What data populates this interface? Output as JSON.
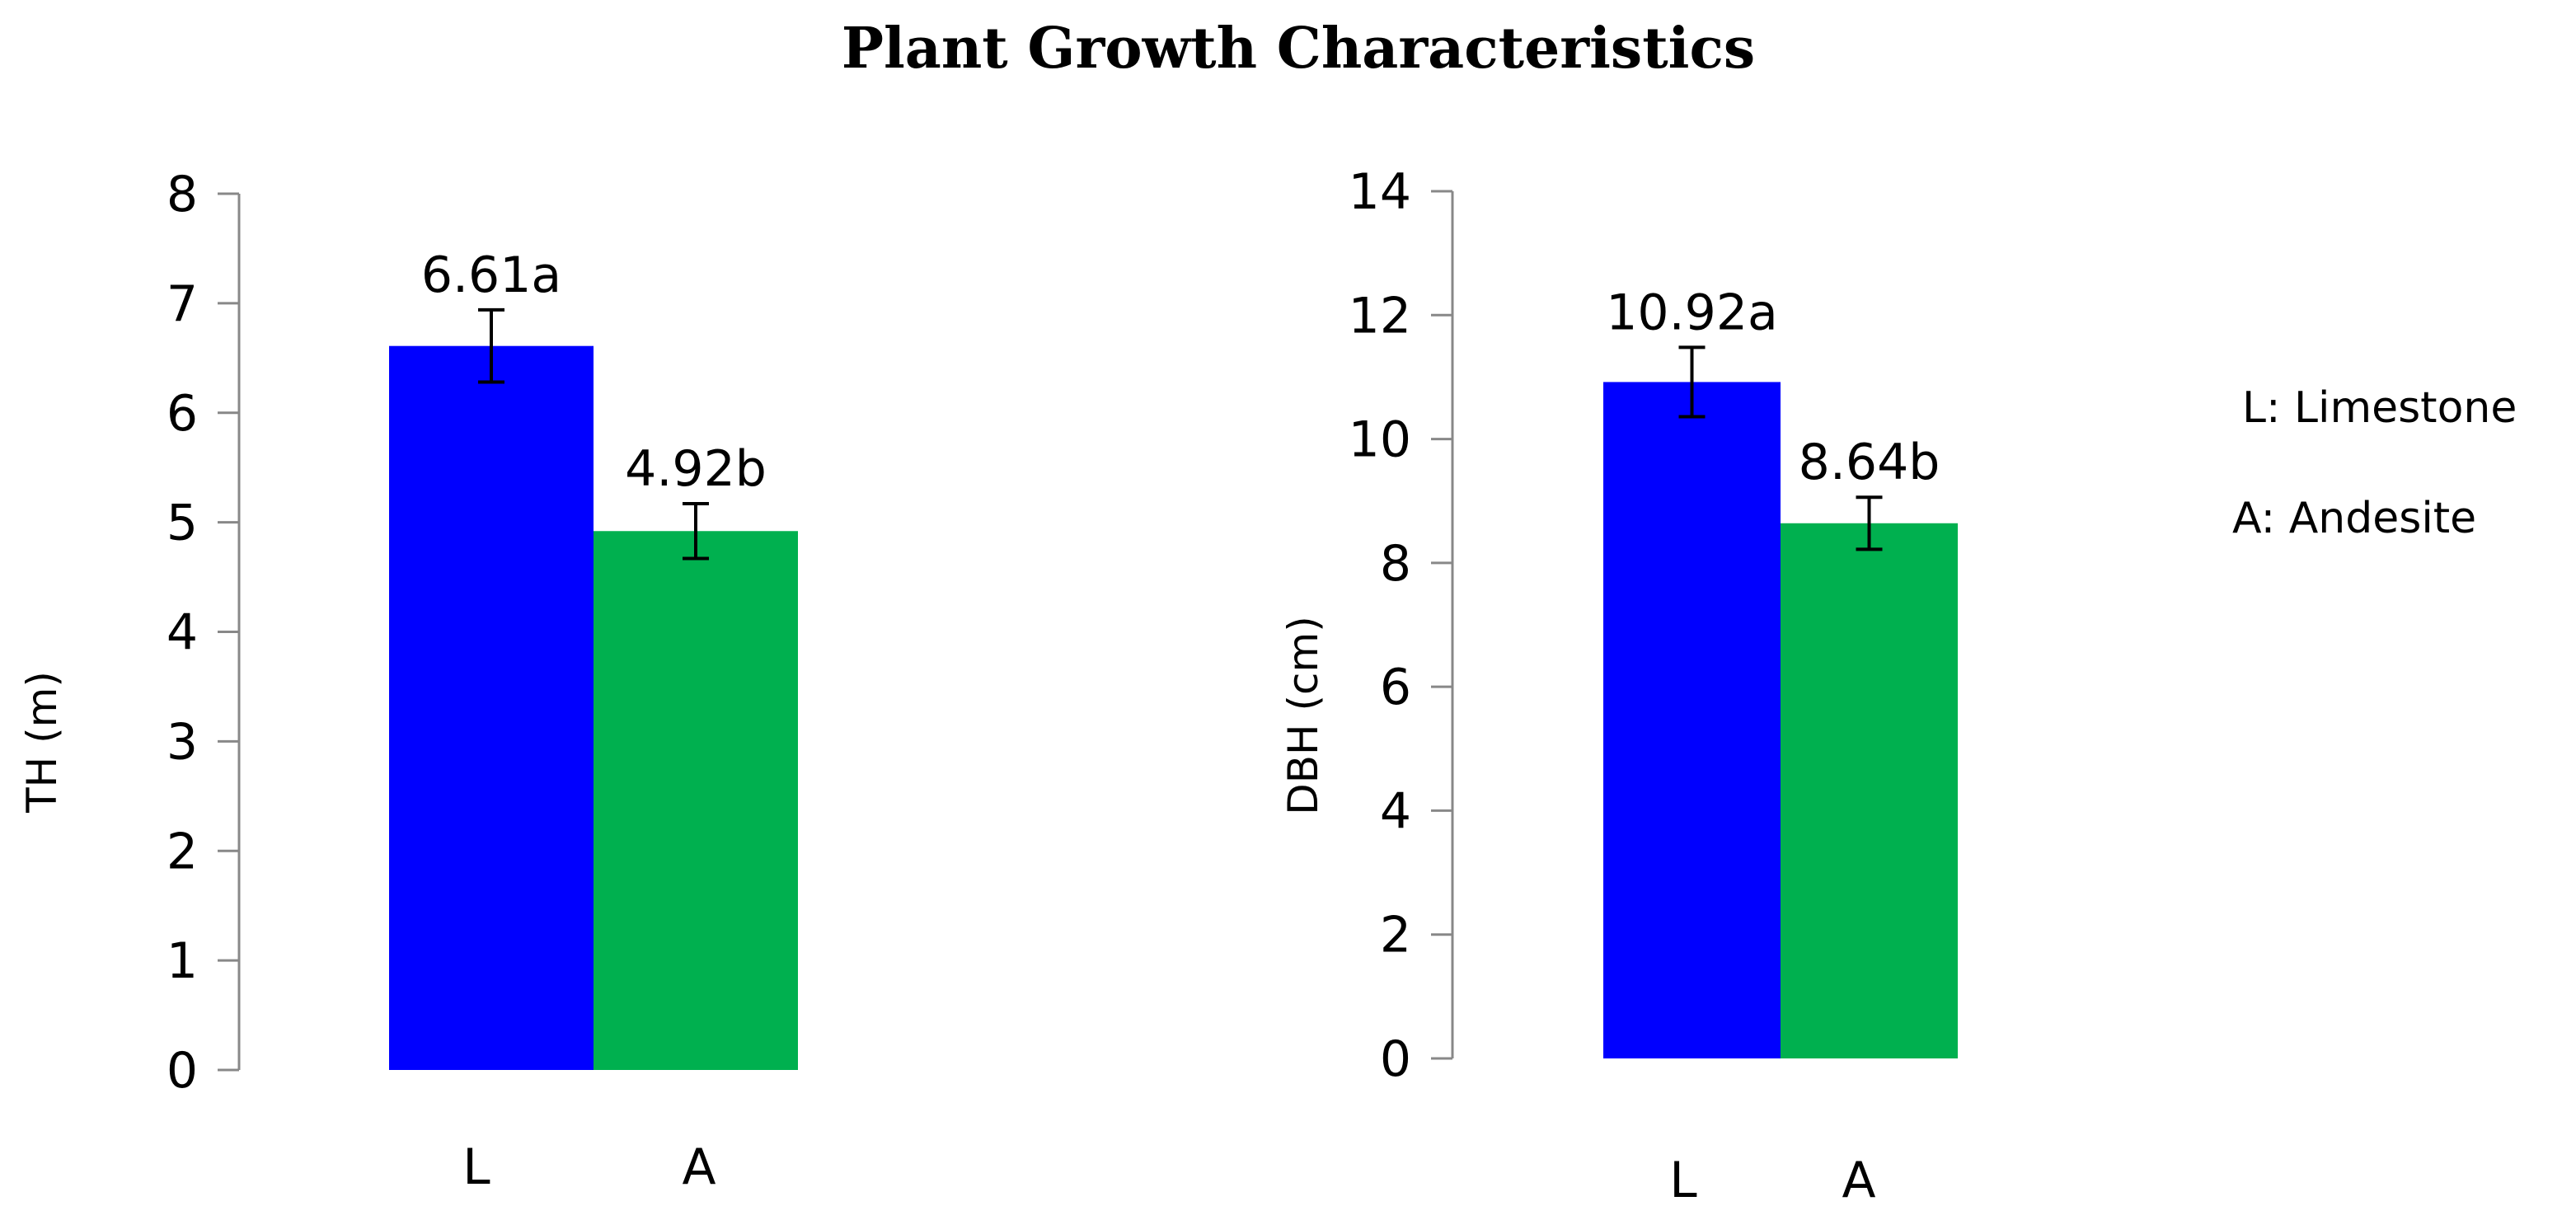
{
  "figure_title": "Plant Growth Characteristics",
  "legend": [
    "L: Limestone",
    "A: Andesite"
  ],
  "colors": {
    "L": "#0000ff",
    "A": "#00b04f"
  },
  "chart_data": [
    {
      "type": "bar",
      "ylabel": "TH (m)",
      "categories": [
        "L",
        "A"
      ],
      "values": [
        6.61,
        4.92
      ],
      "error": [
        0.33,
        0.25
      ],
      "data_labels": [
        "6.61a",
        "4.92b"
      ],
      "ylim": [
        0,
        8
      ],
      "yticks": [
        0,
        1,
        2,
        3,
        4,
        5,
        6,
        7,
        8
      ],
      "grid": false
    },
    {
      "type": "bar",
      "ylabel": "DBH (cm)",
      "categories": [
        "L",
        "A"
      ],
      "values": [
        10.92,
        8.64
      ],
      "error": [
        0.56,
        0.42
      ],
      "data_labels": [
        "10.92a",
        "8.64b"
      ],
      "ylim": [
        0,
        14
      ],
      "yticks": [
        0,
        2,
        4,
        6,
        8,
        10,
        12,
        14
      ],
      "grid": false
    }
  ]
}
